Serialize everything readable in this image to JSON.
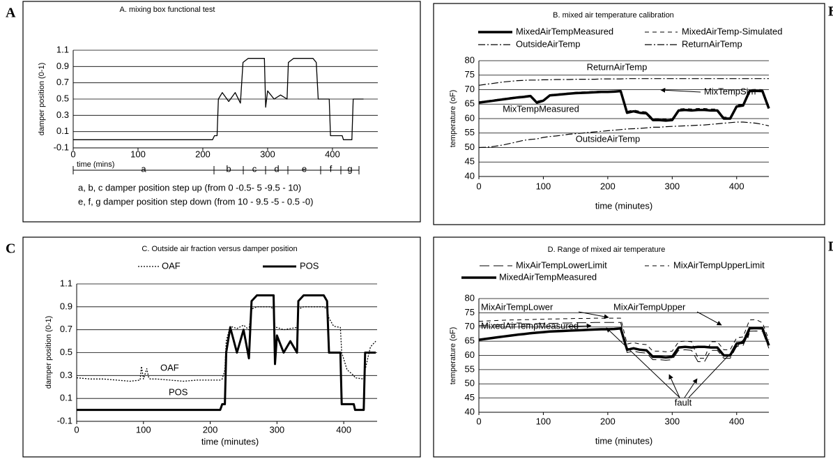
{
  "chart_data": [
    {
      "type": "line",
      "panel": "A",
      "title": "A. mixing box functional test",
      "ylabel": "damper position (0-1)",
      "xlabel": "time (mins)",
      "xlim": [
        0,
        470
      ],
      "xticks": [
        0,
        100,
        200,
        300,
        400
      ],
      "ylim": [
        -0.1,
        1.1
      ],
      "yticks": [
        -0.1,
        0.1,
        0.3,
        0.5,
        0.7,
        0.9,
        1.1
      ],
      "grid": true,
      "x": [
        0,
        20,
        40,
        60,
        80,
        95,
        97,
        100,
        105,
        108,
        110,
        120,
        140,
        160,
        180,
        200,
        215,
        218,
        222,
        224,
        230,
        240,
        250,
        258,
        262,
        270,
        290,
        295,
        297,
        300,
        310,
        320,
        330,
        332,
        340,
        370,
        375,
        378,
        385,
        395,
        397,
        405,
        415,
        417,
        430,
        432,
        440,
        448
      ],
      "series": [
        {
          "color": "#000000",
          "style": "solid",
          "width": 1.3,
          "values": [
            0,
            0,
            0,
            0,
            0,
            0,
            0,
            0,
            0,
            0,
            0,
            0,
            0,
            0,
            0,
            0,
            0,
            0.05,
            0.05,
            0.5,
            0.58,
            0.47,
            0.58,
            0.45,
            0.95,
            1.0,
            1.0,
            1.0,
            0.4,
            0.6,
            0.5,
            0.55,
            0.5,
            0.95,
            1.0,
            1.0,
            0.95,
            0.5,
            0.5,
            0.5,
            0.05,
            0.05,
            0.05,
            0,
            0,
            0.5,
            0.5,
            0.5
          ]
        }
      ],
      "segments": [
        "a",
        "b",
        "c",
        "d",
        "e",
        "f",
        "g"
      ],
      "notes": [
        "a, b, c damper position step up (from 0 -0.5- 5 -9.5 - 10)",
        "e, f, g damper position step down (from 10 - 9.5 -5 - 0.5 -0)"
      ]
    },
    {
      "type": "line",
      "panel": "B",
      "title": "B. mixed air temperature calibration",
      "ylabel": "temperature (oF)",
      "xlabel": "time (minutes)",
      "xlim": [
        0,
        450
      ],
      "xticks": [
        0,
        100,
        200,
        300,
        400
      ],
      "ylim": [
        40,
        80
      ],
      "yticks": [
        40,
        45,
        50,
        55,
        60,
        65,
        70,
        75,
        80
      ],
      "grid": true,
      "x": [
        0,
        10,
        20,
        30,
        40,
        50,
        60,
        70,
        80,
        90,
        100,
        110,
        120,
        130,
        140,
        150,
        160,
        170,
        180,
        190,
        200,
        210,
        220,
        230,
        240,
        250,
        260,
        270,
        280,
        290,
        300,
        310,
        320,
        330,
        340,
        350,
        360,
        370,
        380,
        390,
        400,
        410,
        420,
        430,
        440,
        450
      ],
      "series": [
        {
          "name": "MixedAirTempMeasured",
          "color": "#000000",
          "style": "solid",
          "width": 3.5,
          "values": [
            65.5,
            65.8,
            66.1,
            66.4,
            66.7,
            67.0,
            67.3,
            67.5,
            67.8,
            65.5,
            66.2,
            68.0,
            68.2,
            68.4,
            68.6,
            68.8,
            68.9,
            69.0,
            69.1,
            69.2,
            69.2,
            69.3,
            69.5,
            62.0,
            62.5,
            62.0,
            61.8,
            59.5,
            59.5,
            59.3,
            59.5,
            62.8,
            63.0,
            62.8,
            63.0,
            63.0,
            62.8,
            62.8,
            60.0,
            60.0,
            64.2,
            64.5,
            69.5,
            69.6,
            69.5,
            63.5
          ]
        },
        {
          "name": "MixedAirTemp-Simulated",
          "color": "#000000",
          "style": "dashed",
          "width": 1,
          "values": [
            65.8,
            66.1,
            66.4,
            66.7,
            67.0,
            67.3,
            67.6,
            67.8,
            68.1,
            66.0,
            66.5,
            68.3,
            68.5,
            68.7,
            68.9,
            69.1,
            69.2,
            69.3,
            69.4,
            69.5,
            69.5,
            69.6,
            69.7,
            62.5,
            63.0,
            62.5,
            62.3,
            60.0,
            60.0,
            59.8,
            60.0,
            63.3,
            63.5,
            63.3,
            63.5,
            63.5,
            63.3,
            63.3,
            60.5,
            60.5,
            64.7,
            65.0,
            70.0,
            70.1,
            70.0,
            64.0
          ]
        },
        {
          "name": "OutsideAirTemp",
          "color": "#000000",
          "style": "dashdot",
          "width": 1.2,
          "values": [
            50.0,
            50.1,
            50.3,
            50.6,
            51.0,
            51.5,
            52.0,
            52.5,
            52.8,
            53.0,
            53.5,
            53.8,
            54.0,
            54.3,
            54.6,
            54.8,
            55.0,
            55.2,
            55.4,
            55.6,
            55.8,
            56.0,
            56.2,
            56.4,
            56.5,
            56.6,
            56.8,
            57.0,
            57.0,
            57.2,
            57.3,
            57.4,
            57.5,
            57.6,
            57.7,
            57.8,
            58.0,
            58.2,
            58.4,
            58.6,
            58.8,
            58.8,
            58.6,
            58.4,
            58.0,
            57.5
          ]
        },
        {
          "name": "ReturnAirTemp",
          "color": "#000000",
          "style": "dashdot",
          "width": 1.2,
          "values": [
            71.5,
            71.8,
            72.1,
            72.4,
            72.7,
            72.9,
            73.1,
            73.2,
            73.3,
            73.3,
            73.4,
            73.4,
            73.5,
            73.5,
            73.5,
            73.6,
            73.6,
            73.6,
            73.6,
            73.7,
            73.7,
            73.7,
            73.7,
            73.8,
            73.8,
            73.8,
            73.8,
            73.8,
            73.8,
            73.8,
            73.8,
            73.8,
            73.8,
            73.8,
            73.8,
            73.8,
            73.8,
            73.8,
            73.8,
            73.8,
            73.8,
            73.8,
            73.8,
            73.8,
            73.8,
            73.8
          ]
        }
      ],
      "annotations": [
        "ReturnAirTemp",
        "MixTempSim",
        "MixTempMeasured",
        "OutsideAirTemp"
      ]
    },
    {
      "type": "line",
      "panel": "C",
      "title": "C. Outside air fraction versus damper position",
      "ylabel": "damper position (0-1)",
      "xlabel": "time (minutes)",
      "xlim": [
        0,
        450
      ],
      "xticks": [
        0,
        100,
        200,
        300,
        400
      ],
      "ylim": [
        -0.1,
        1.1
      ],
      "yticks": [
        -0.1,
        0.1,
        0.3,
        0.5,
        0.7,
        0.9,
        1.1
      ],
      "grid": true,
      "x": [
        0,
        20,
        40,
        60,
        80,
        95,
        97,
        100,
        105,
        108,
        110,
        120,
        140,
        160,
        180,
        200,
        215,
        218,
        222,
        224,
        230,
        240,
        250,
        258,
        262,
        270,
        290,
        295,
        297,
        300,
        310,
        320,
        330,
        332,
        340,
        370,
        375,
        378,
        385,
        395,
        397,
        405,
        415,
        417,
        430,
        432,
        440,
        448
      ],
      "series": [
        {
          "name": "OAF",
          "color": "#000000",
          "style": "dotted",
          "width": 1.3,
          "values": [
            0.28,
            0.27,
            0.27,
            0.26,
            0.25,
            0.26,
            0.38,
            0.27,
            0.36,
            0.28,
            0.27,
            0.27,
            0.26,
            0.25,
            0.26,
            0.26,
            0.26,
            0.27,
            0.35,
            0.6,
            0.73,
            0.71,
            0.74,
            0.7,
            0.88,
            0.9,
            0.9,
            0.88,
            0.72,
            0.72,
            0.7,
            0.71,
            0.72,
            0.88,
            0.9,
            0.9,
            0.88,
            0.8,
            0.73,
            0.72,
            0.5,
            0.35,
            0.3,
            0.28,
            0.27,
            0.35,
            0.55,
            0.6
          ]
        },
        {
          "name": "POS",
          "color": "#000000",
          "style": "solid",
          "width": 3,
          "values": [
            0,
            0,
            0,
            0,
            0,
            0,
            0,
            0,
            0,
            0,
            0,
            0,
            0,
            0,
            0,
            0,
            0,
            0.05,
            0.05,
            0.5,
            0.72,
            0.5,
            0.7,
            0.45,
            0.95,
            1.0,
            1.0,
            1.0,
            0.4,
            0.65,
            0.5,
            0.6,
            0.5,
            0.95,
            1.0,
            1.0,
            0.95,
            0.5,
            0.5,
            0.5,
            0.05,
            0.05,
            0.05,
            0,
            0,
            0.5,
            0.5,
            0.5
          ]
        }
      ],
      "annotations": [
        "OAF",
        "POS"
      ]
    },
    {
      "type": "line",
      "panel": "D",
      "title": "D. Range of mixed air temperature",
      "ylabel": "temperature (oF)",
      "xlabel": "time (minutes)",
      "xlim": [
        0,
        450
      ],
      "xticks": [
        0,
        100,
        200,
        300,
        400
      ],
      "ylim": [
        40,
        80
      ],
      "yticks": [
        40,
        45,
        50,
        55,
        60,
        65,
        70,
        75,
        80
      ],
      "grid": true,
      "x": [
        0,
        10,
        20,
        30,
        40,
        50,
        60,
        70,
        80,
        90,
        100,
        110,
        120,
        130,
        140,
        150,
        160,
        170,
        180,
        190,
        200,
        210,
        220,
        230,
        240,
        250,
        260,
        270,
        280,
        290,
        300,
        310,
        320,
        330,
        340,
        350,
        360,
        370,
        380,
        390,
        400,
        410,
        420,
        430,
        440,
        450
      ],
      "series": [
        {
          "name": "MixAirTempLowerLimit",
          "color": "#000000",
          "style": "longdash",
          "width": 1,
          "values": [
            70.5,
            70.6,
            70.7,
            70.8,
            70.9,
            71.0,
            71.0,
            71.1,
            71.1,
            71.2,
            71.2,
            71.3,
            71.3,
            71.4,
            71.4,
            71.5,
            71.5,
            71.5,
            71.6,
            71.6,
            71.6,
            71.6,
            71.6,
            61.0,
            61.5,
            61.0,
            60.8,
            58.5,
            58.5,
            58.3,
            58.5,
            61.8,
            62.0,
            61.8,
            57.8,
            57.8,
            61.8,
            61.8,
            59.0,
            59.0,
            63.2,
            63.5,
            68.5,
            68.6,
            68.5,
            62.5
          ]
        },
        {
          "name": "MixAirTempUpperLimit",
          "color": "#000000",
          "style": "dashed",
          "width": 1,
          "values": [
            72.0,
            72.1,
            72.2,
            72.3,
            72.4,
            72.5,
            72.5,
            72.6,
            72.6,
            72.7,
            72.7,
            72.8,
            72.8,
            72.9,
            72.9,
            73.0,
            73.0,
            73.0,
            73.1,
            73.1,
            73.1,
            73.1,
            73.1,
            64.0,
            64.5,
            64.0,
            63.8,
            61.5,
            61.5,
            61.3,
            61.5,
            64.8,
            65.0,
            64.8,
            59.0,
            59.0,
            64.8,
            64.8,
            62.0,
            62.0,
            66.2,
            66.5,
            72.5,
            72.6,
            71.5,
            65.5
          ]
        },
        {
          "name": "MixedAirTempMeasured",
          "color": "#000000",
          "style": "solid",
          "width": 3.5,
          "values": [
            65.5,
            65.8,
            66.1,
            66.4,
            66.7,
            67.0,
            67.3,
            67.5,
            67.8,
            68.0,
            68.2,
            68.4,
            68.5,
            68.6,
            68.7,
            68.8,
            68.9,
            69.0,
            69.1,
            69.2,
            69.2,
            69.3,
            69.5,
            62.0,
            62.5,
            62.0,
            61.8,
            59.5,
            59.5,
            59.3,
            59.5,
            62.8,
            63.0,
            62.8,
            63.0,
            63.0,
            62.8,
            62.8,
            60.0,
            60.0,
            64.2,
            64.5,
            69.5,
            69.6,
            69.5,
            63.5
          ]
        }
      ],
      "annotations": [
        "MixAirTempLower",
        "MixAirTempUpper",
        "MixedAirTempMeasured",
        "fault"
      ]
    }
  ]
}
